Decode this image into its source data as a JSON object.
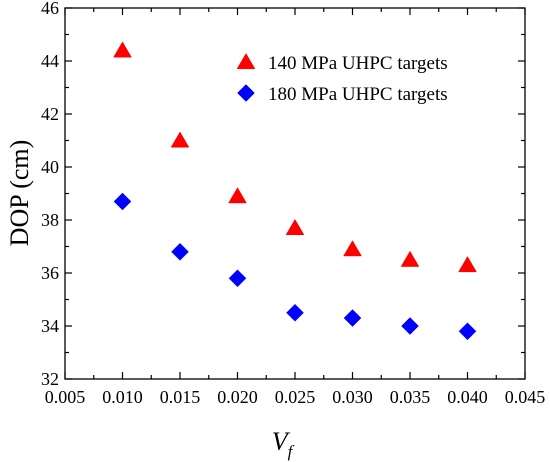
{
  "chart_data": {
    "type": "scatter",
    "xlabel_main": "V",
    "xlabel_sub": "f",
    "ylabel": "DOP (cm)",
    "xlim": [
      0.005,
      0.045
    ],
    "ylim": [
      32,
      46
    ],
    "xticks": [
      "0.005",
      "0.010",
      "0.015",
      "0.020",
      "0.025",
      "0.030",
      "0.035",
      "0.040",
      "0.045"
    ],
    "yticks": [
      "32",
      "34",
      "36",
      "38",
      "40",
      "42",
      "44",
      "46"
    ],
    "grid": false,
    "legend_position": "top-right",
    "series": [
      {
        "name": "140 MPa UHPC targets",
        "marker": "triangle",
        "color": "#ff0000",
        "x": [
          0.01,
          0.015,
          0.02,
          0.025,
          0.03,
          0.035,
          0.04
        ],
        "y": [
          44.4,
          41.0,
          38.9,
          37.7,
          36.9,
          36.5,
          36.3
        ]
      },
      {
        "name": "180 MPa UHPC targets",
        "marker": "diamond",
        "color": "#0000ff",
        "x": [
          0.01,
          0.015,
          0.02,
          0.025,
          0.03,
          0.035,
          0.04
        ],
        "y": [
          38.7,
          36.8,
          35.8,
          34.5,
          34.3,
          34.0,
          33.8
        ]
      }
    ]
  }
}
